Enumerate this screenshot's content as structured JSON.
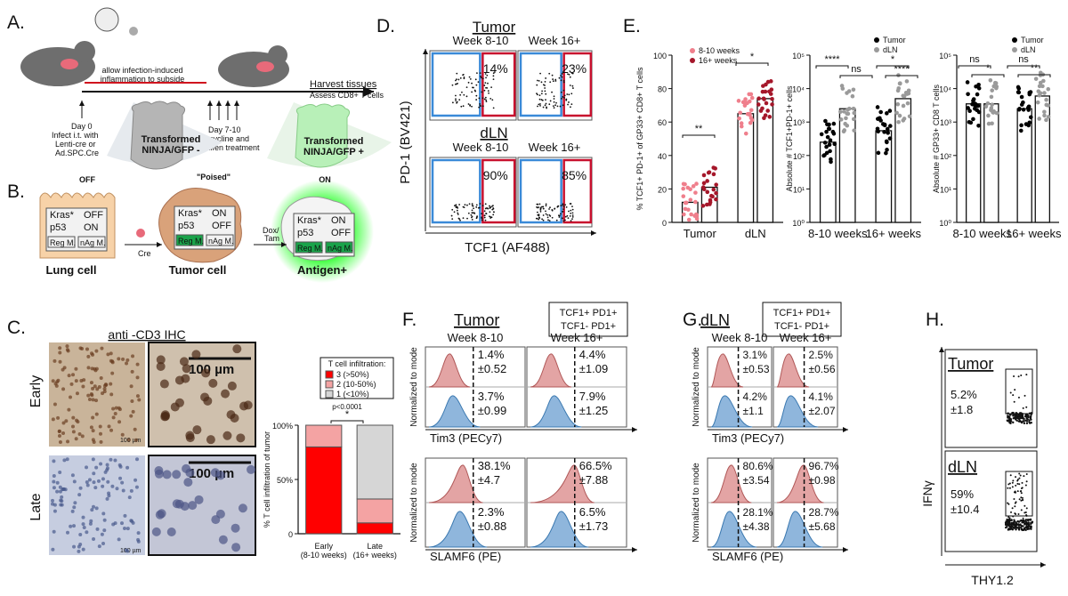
{
  "A": {
    "label": "A.",
    "inflammation": [
      "allow infection-induced",
      "inflammation to subside"
    ],
    "harvest": [
      "Harvest tissues",
      "Assess CD8+ T cells"
    ],
    "day0": [
      "Day 0",
      "Infect i.t. with",
      "Lenti-cre or",
      "Ad.SPC.Cre"
    ],
    "day7": [
      "Day 7-10",
      "doxycycline and",
      "tamoxifen treatment"
    ],
    "gfp_neg": [
      "Transformed",
      "NINJA/GFP -"
    ],
    "gfp_pos": [
      "Transformed",
      "NINJA/GFP +"
    ]
  },
  "B": {
    "label": "B.",
    "states": [
      "OFF",
      "\"Poised\"",
      "ON"
    ],
    "cells": [
      "Lung cell",
      "Tumor cell",
      "Antigen+"
    ],
    "cre": "Cre",
    "dox": [
      "Dox/",
      "Tam"
    ],
    "kras": "Kras*",
    "p53": "p53",
    "off": "OFF",
    "on": "ON",
    "reg": "Reg M.",
    "nag": "nAg M."
  },
  "C": {
    "label": "C.",
    "title": "anti -CD3 IHC",
    "rows": [
      "Early",
      "Late"
    ],
    "scale": "100 µm"
  },
  "D": {
    "label": "D.",
    "groups": [
      "Tumor",
      "dLN"
    ],
    "weeks": [
      "Week 8-10",
      "Week 16+"
    ],
    "pct": [
      [
        "14%",
        "23%"
      ],
      [
        "90%",
        "85%"
      ]
    ],
    "ylabel": "PD-1 (BV421)",
    "xlabel": "TCF1 (AF488)"
  },
  "E": {
    "label": "E."
  },
  "F": {
    "label": "F.",
    "title": "Tumor",
    "legend": [
      "TCF1+ PD1+",
      "TCF1- PD1+"
    ],
    "weeks": [
      "Week 8-10",
      "Week 16+"
    ],
    "ylabel": "Normalized to mode",
    "tim3": {
      "xlabel": "Tim3 (PECy7)",
      "red": [
        [
          "1.4%",
          "±0.52"
        ],
        [
          "4.4%",
          "±1.09"
        ]
      ],
      "blue": [
        [
          "3.7%",
          "±0.99"
        ],
        [
          "7.9%",
          "±1.25"
        ]
      ]
    },
    "slamf6": {
      "xlabel": "SLAMF6 (PE)",
      "red": [
        [
          "38.1%",
          "±4.7"
        ],
        [
          "66.5%",
          "±7.88"
        ]
      ],
      "blue": [
        [
          "2.3%",
          "±0.88"
        ],
        [
          "6.5%",
          "±1.73"
        ]
      ]
    }
  },
  "G": {
    "label": "G.",
    "title": "dLN",
    "legend": [
      "TCF1+ PD1+",
      "TCF1- PD1+"
    ],
    "weeks": [
      "Week 8-10",
      "Week 16+"
    ],
    "ylabel": "Normalized to mode",
    "tim3": {
      "xlabel": "Tim3 (PECy7)",
      "red": [
        [
          "3.1%",
          "±0.53"
        ],
        [
          "2.5%",
          "±0.56"
        ]
      ],
      "blue": [
        [
          "4.2%",
          "±1.1"
        ],
        [
          "4.1%",
          "±2.07"
        ]
      ]
    },
    "slamf6": {
      "xlabel": "SLAMF6 (PE)",
      "red": [
        [
          "80.6%",
          "±3.54"
        ],
        [
          "96.7%",
          "±0.98"
        ]
      ],
      "blue": [
        [
          "28.1%",
          "±4.38"
        ],
        [
          "28.7%",
          "±5.68"
        ]
      ]
    }
  },
  "H": {
    "label": "H.",
    "groups": [
      "Tumor",
      "dLN"
    ],
    "pct": [
      [
        "5.2%",
        "±1.8"
      ],
      [
        "59%",
        "±10.4"
      ]
    ],
    "ylabel": "IFNγ",
    "xlabel": "THY1.2"
  },
  "chart_data": [
    {
      "type": "bar",
      "stacked": true,
      "categories": [
        "Early",
        "Late"
      ],
      "sublabels": [
        "(8-10 weeks)",
        "(16+ weeks)"
      ],
      "series": [
        {
          "name": "3 (>50%)",
          "color": "#ff0000",
          "values": [
            80,
            10
          ]
        },
        {
          "name": "2 (10-50%)",
          "color": "#f4a3a3",
          "values": [
            20,
            22
          ]
        },
        {
          "name": "1 (<10%)",
          "color": "#d6d6d6",
          "values": [
            0,
            68
          ]
        }
      ],
      "ylim": [
        0,
        100
      ],
      "yticks": [
        0,
        {
          "value": 50,
          "label": "50%"
        },
        {
          "value": 100,
          "label": "100%"
        }
      ],
      "ylabel": "% T cell infiltration of tumor",
      "legend_title": "T cell infiltration:",
      "annotations": [
        "p<0.0001",
        "*"
      ]
    },
    {
      "type": "bar",
      "categories": [
        "Tumor",
        "dLN"
      ],
      "series": [
        {
          "name": "8-10 weeks",
          "color": "#ef7f8c",
          "values": [
            12,
            65
          ]
        },
        {
          "name": "16+ weeks",
          "color": "#a5172a",
          "values": [
            21,
            74
          ]
        }
      ],
      "ylim": [
        0,
        100
      ],
      "yticks": [
        0,
        20,
        40,
        60,
        80,
        100
      ],
      "ylabel": "% TCF1+ PD-1+ of GP33+ CD8+ T cells",
      "annotations": [
        "**",
        "*"
      ],
      "legend": "upper left"
    },
    {
      "type": "bar",
      "log": true,
      "categories": [
        "8-10 weeks",
        "16+ weeks"
      ],
      "series": [
        {
          "name": "Tumor",
          "color": "#000000",
          "values": [
            250,
            550
          ]
        },
        {
          "name": "dLN",
          "color": "#9a9a9a",
          "values": [
            2500,
            5000
          ]
        }
      ],
      "ylim": [
        1,
        100000
      ],
      "yticks": [
        {
          "value": 1,
          "label": "10⁰"
        },
        {
          "value": 10,
          "label": "10¹"
        },
        {
          "value": 100,
          "label": "10²"
        },
        {
          "value": 1000,
          "label": "10³"
        },
        {
          "value": 10000,
          "label": "10⁴"
        },
        {
          "value": 100000,
          "label": "10⁵"
        }
      ],
      "ylabel": "Absolute # TCF1+PD-1+ cells",
      "annotations": [
        "****",
        "ns",
        "*",
        "****"
      ],
      "legend": "upper right"
    },
    {
      "type": "bar",
      "log": true,
      "categories": [
        "8-10 weeks",
        "16+ weeks"
      ],
      "series": [
        {
          "name": "Tumor",
          "color": "#000000",
          "values": [
            3500,
            2500
          ]
        },
        {
          "name": "dLN",
          "color": "#9a9a9a",
          "values": [
            3500,
            6000
          ]
        }
      ],
      "ylim": [
        1,
        100000
      ],
      "yticks": [
        {
          "value": 1,
          "label": "10⁰"
        },
        {
          "value": 10,
          "label": "10¹"
        },
        {
          "value": 100,
          "label": "10²"
        },
        {
          "value": 1000,
          "label": "10³"
        },
        {
          "value": 10000,
          "label": "10⁴"
        },
        {
          "value": 100000,
          "label": "10⁵"
        }
      ],
      "ylabel": "Absolute # GP33+ CD8 T cells",
      "annotations": [
        "ns",
        "*",
        "ns",
        "**"
      ],
      "legend": "upper right"
    }
  ]
}
